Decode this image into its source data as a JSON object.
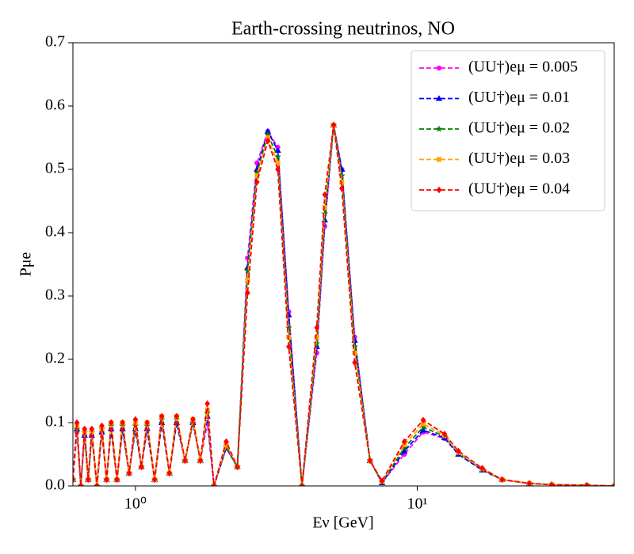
{
  "chart_data": {
    "type": "line",
    "title": "Earth-crossing neutrinos, NO",
    "x_label": "Eν [GeV]",
    "y_label": "Pμe",
    "xscale": "log",
    "xlim": [
      0.6,
      50
    ],
    "ylim": [
      0,
      0.7
    ],
    "xticks": [
      {
        "value": 1,
        "label": "10⁰"
      },
      {
        "value": 10,
        "label": "10¹"
      }
    ],
    "yticks": [
      {
        "value": 0,
        "label": "0.0"
      },
      0.1,
      0.2,
      0.3,
      0.4,
      0.5,
      0.6,
      0.7
    ],
    "legend": "upper right",
    "x": [
      0.6,
      0.62,
      0.64,
      0.66,
      0.68,
      0.7,
      0.73,
      0.76,
      0.79,
      0.82,
      0.86,
      0.9,
      0.95,
      1.0,
      1.05,
      1.1,
      1.17,
      1.24,
      1.32,
      1.4,
      1.5,
      1.6,
      1.7,
      1.8,
      1.9,
      2.1,
      2.3,
      2.5,
      2.7,
      2.95,
      3.2,
      3.5,
      3.9,
      4.4,
      4.7,
      5.05,
      5.4,
      6.0,
      6.8,
      7.5,
      9,
      10.5,
      12.5,
      14,
      17,
      20,
      25,
      30,
      40,
      50
    ],
    "series": [
      {
        "name": "(UU†)eμ = 0.005",
        "color": "#ff00ff",
        "marker": "circle",
        "values": [
          0.01,
          0.085,
          0.0,
          0.08,
          0.01,
          0.08,
          0.0,
          0.085,
          0.01,
          0.09,
          0.01,
          0.09,
          0.02,
          0.09,
          0.03,
          0.09,
          0.01,
          0.1,
          0.02,
          0.1,
          0.04,
          0.1,
          0.04,
          0.1,
          0.0,
          0.06,
          0.03,
          0.36,
          0.51,
          0.56,
          0.535,
          0.275,
          0.0,
          0.21,
          0.41,
          0.57,
          0.5,
          0.235,
          0.04,
          0.005,
          0.05,
          0.085,
          0.075,
          0.05,
          0.025,
          0.01,
          0.004,
          0.002,
          0.001,
          0.0
        ]
      },
      {
        "name": "(UU†)eμ = 0.01",
        "color": "#0000ff",
        "marker": "triangle",
        "values": [
          0.01,
          0.09,
          0.0,
          0.08,
          0.01,
          0.08,
          0.0,
          0.085,
          0.01,
          0.09,
          0.01,
          0.09,
          0.02,
          0.09,
          0.03,
          0.09,
          0.01,
          0.1,
          0.02,
          0.1,
          0.04,
          0.1,
          0.04,
          0.11,
          0.0,
          0.06,
          0.03,
          0.345,
          0.5,
          0.56,
          0.53,
          0.27,
          0.0,
          0.22,
          0.42,
          0.57,
          0.5,
          0.23,
          0.04,
          0.005,
          0.055,
          0.088,
          0.076,
          0.05,
          0.025,
          0.01,
          0.004,
          0.002,
          0.001,
          0.0
        ]
      },
      {
        "name": "(UU†)eμ = 0.02",
        "color": "#008000",
        "marker": "star",
        "values": [
          0.01,
          0.09,
          0.0,
          0.085,
          0.01,
          0.085,
          0.0,
          0.09,
          0.01,
          0.095,
          0.01,
          0.095,
          0.02,
          0.095,
          0.03,
          0.095,
          0.01,
          0.105,
          0.02,
          0.105,
          0.04,
          0.1,
          0.04,
          0.115,
          0.0,
          0.062,
          0.03,
          0.34,
          0.495,
          0.555,
          0.52,
          0.25,
          0.0,
          0.225,
          0.43,
          0.57,
          0.49,
          0.22,
          0.04,
          0.006,
          0.06,
          0.093,
          0.078,
          0.052,
          0.026,
          0.01,
          0.004,
          0.002,
          0.001,
          0.0
        ]
      },
      {
        "name": "(UU†)eμ = 0.03",
        "color": "#ffa500",
        "marker": "square",
        "values": [
          0.01,
          0.095,
          0.0,
          0.085,
          0.01,
          0.085,
          0.0,
          0.09,
          0.01,
          0.1,
          0.01,
          0.1,
          0.02,
          0.1,
          0.03,
          0.1,
          0.01,
          0.11,
          0.02,
          0.11,
          0.04,
          0.105,
          0.04,
          0.12,
          0.0,
          0.065,
          0.03,
          0.325,
          0.49,
          0.55,
          0.51,
          0.235,
          0.0,
          0.235,
          0.44,
          0.57,
          0.48,
          0.21,
          0.04,
          0.007,
          0.065,
          0.098,
          0.08,
          0.053,
          0.027,
          0.01,
          0.004,
          0.002,
          0.001,
          0.0
        ]
      },
      {
        "name": "(UU†)eμ = 0.04",
        "color": "#ff0000",
        "marker": "diamond",
        "values": [
          0.01,
          0.1,
          0.0,
          0.09,
          0.01,
          0.09,
          0.0,
          0.095,
          0.01,
          0.1,
          0.01,
          0.1,
          0.02,
          0.105,
          0.03,
          0.1,
          0.01,
          0.11,
          0.02,
          0.11,
          0.04,
          0.105,
          0.04,
          0.13,
          0.0,
          0.07,
          0.03,
          0.305,
          0.48,
          0.545,
          0.5,
          0.22,
          0.0,
          0.25,
          0.46,
          0.57,
          0.47,
          0.195,
          0.04,
          0.008,
          0.07,
          0.104,
          0.082,
          0.055,
          0.028,
          0.01,
          0.004,
          0.002,
          0.001,
          0.0
        ]
      }
    ]
  }
}
